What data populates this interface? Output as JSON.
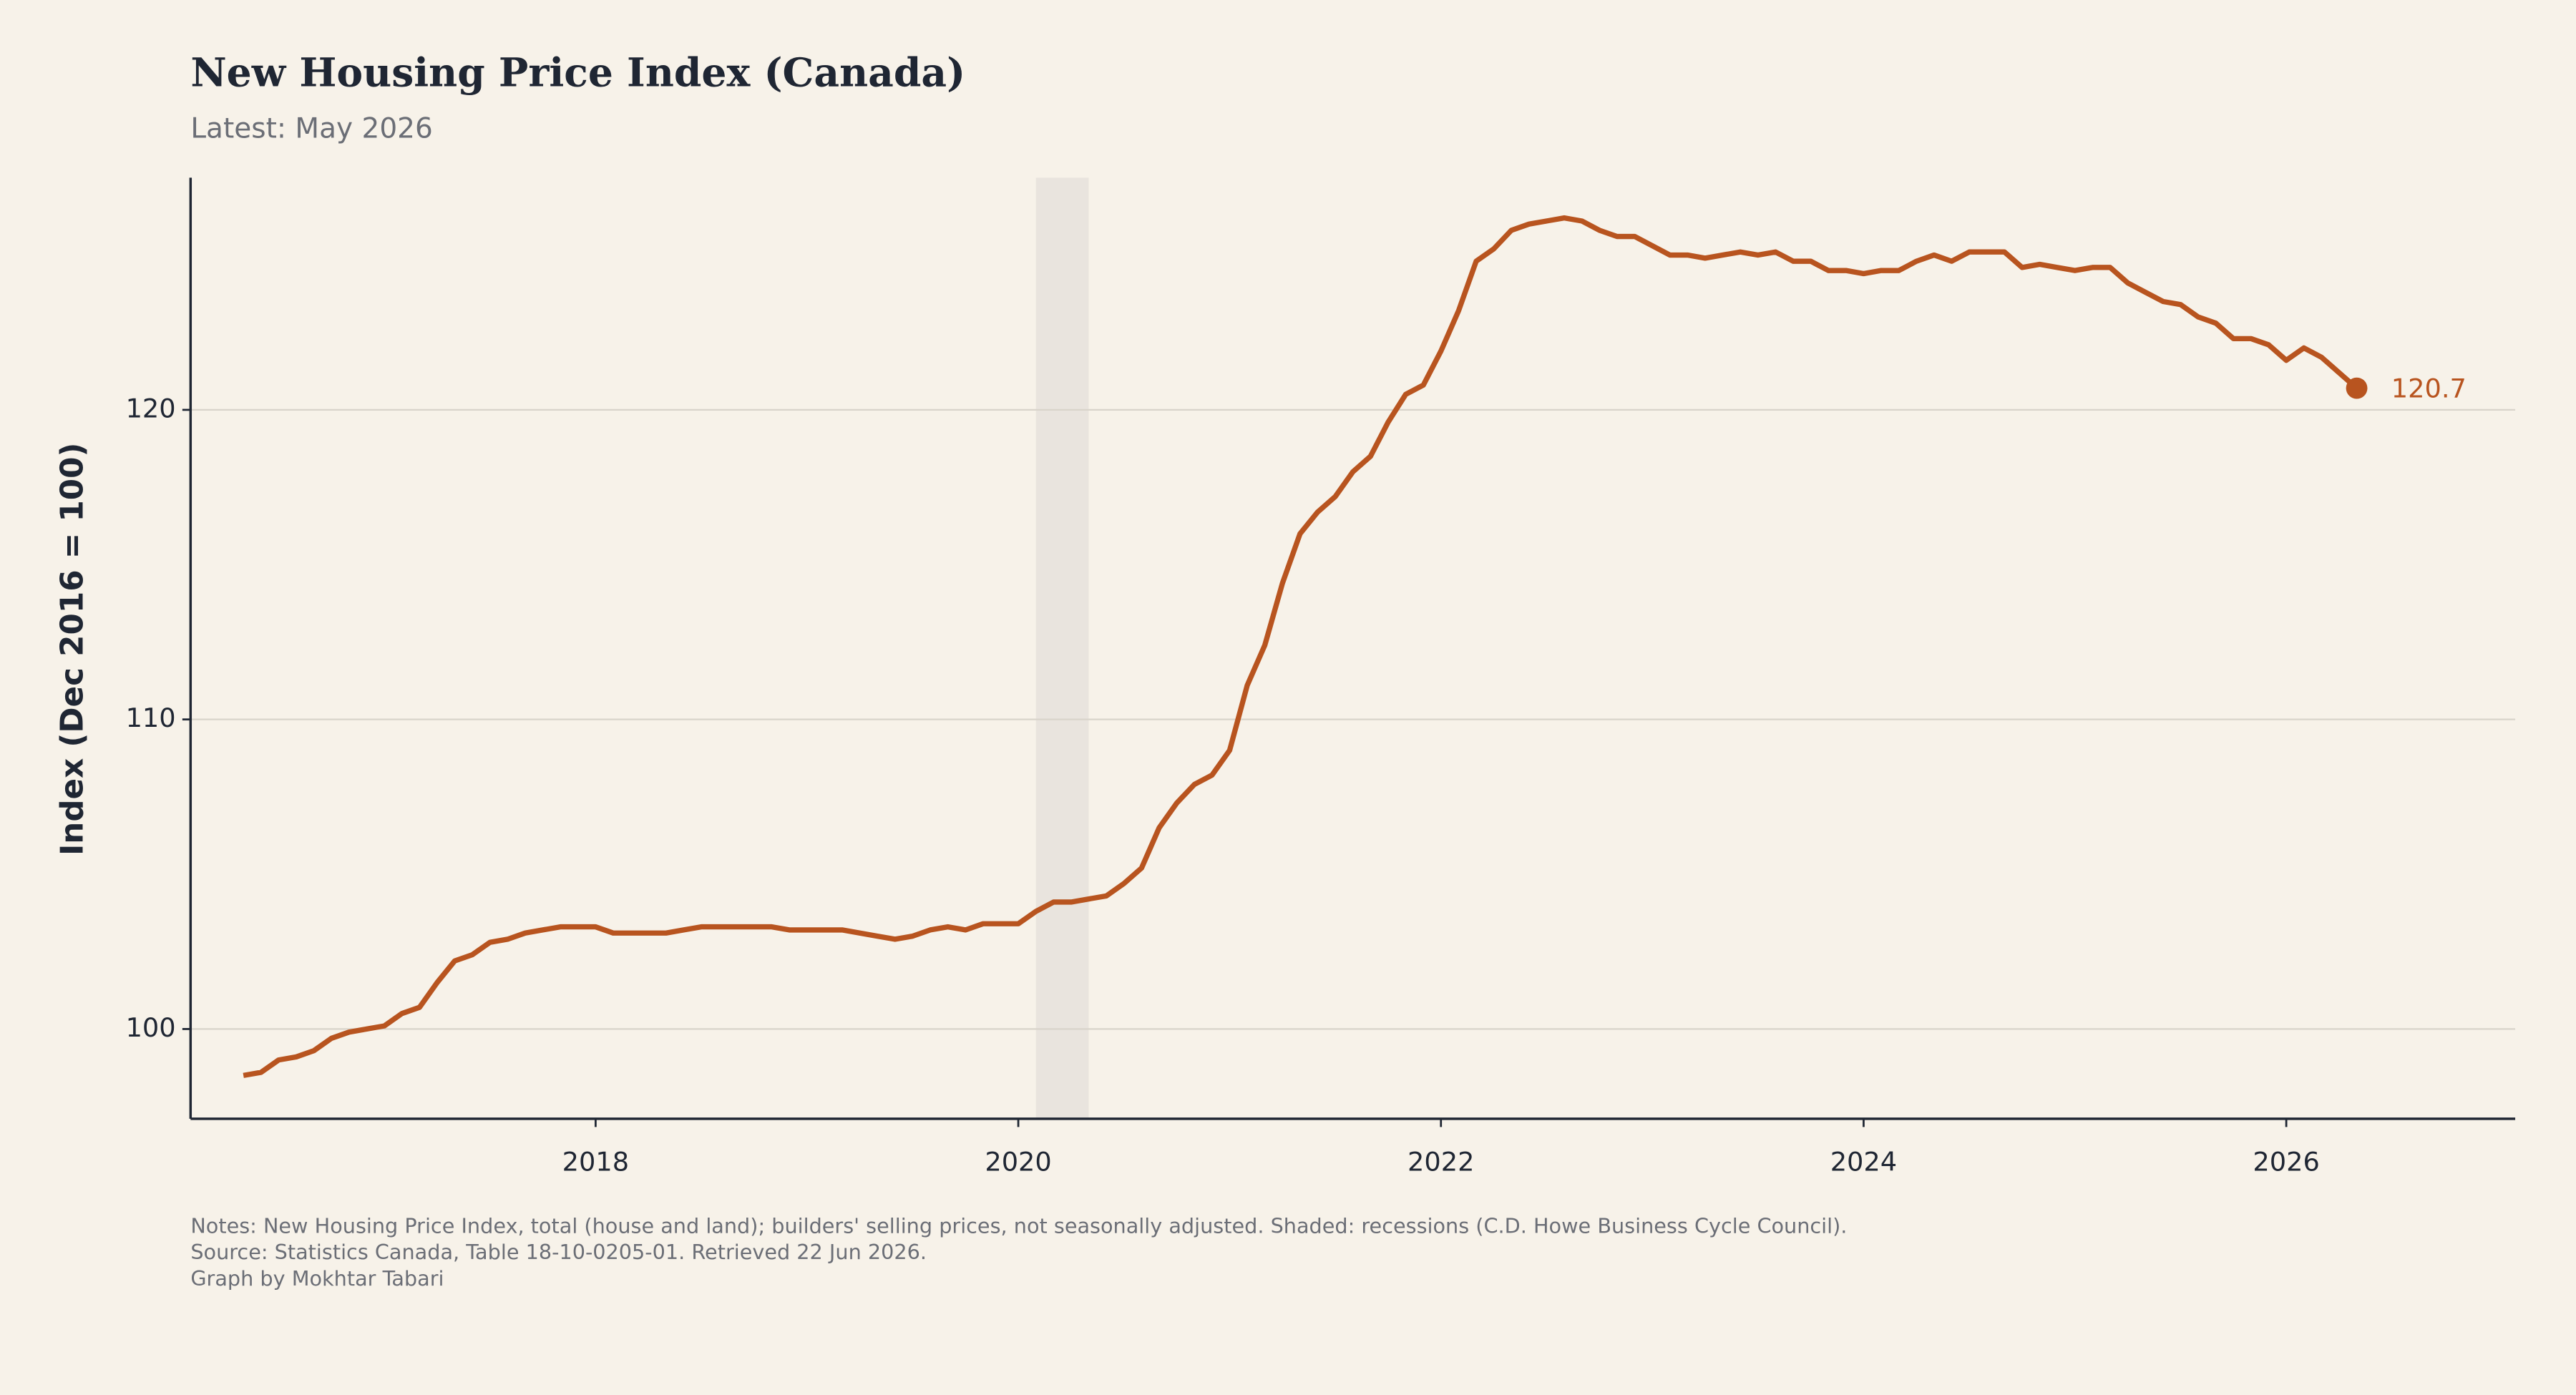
{
  "chart_data": {
    "type": "line",
    "title": "New Housing Price Index (Canada)",
    "subtitle": "Latest: May 2026",
    "y_label": "Index (Dec 2016 = 100)",
    "notes": [
      "Notes: New Housing Price Index, total (house and land); builders' selling prices, not seasonally adjusted. Shaded: recessions (C.D. Howe Business Cycle Council).",
      "Source: Statistics Canada, Table 18-10-0205-01. Retrieved 22 Jun 2026.",
      "Graph by Mokhtar Tabari"
    ],
    "x": [
      "2016-05",
      "2016-06",
      "2016-07",
      "2016-08",
      "2016-09",
      "2016-10",
      "2016-11",
      "2016-12",
      "2017-01",
      "2017-02",
      "2017-03",
      "2017-04",
      "2017-05",
      "2017-06",
      "2017-07",
      "2017-08",
      "2017-09",
      "2017-10",
      "2017-11",
      "2017-12",
      "2018-01",
      "2018-02",
      "2018-03",
      "2018-04",
      "2018-05",
      "2018-06",
      "2018-07",
      "2018-08",
      "2018-09",
      "2018-10",
      "2018-11",
      "2018-12",
      "2019-01",
      "2019-02",
      "2019-03",
      "2019-04",
      "2019-05",
      "2019-06",
      "2019-07",
      "2019-08",
      "2019-09",
      "2019-10",
      "2019-11",
      "2019-12",
      "2020-01",
      "2020-02",
      "2020-03",
      "2020-04",
      "2020-05",
      "2020-06",
      "2020-07",
      "2020-08",
      "2020-09",
      "2020-10",
      "2020-11",
      "2020-12",
      "2021-01",
      "2021-02",
      "2021-03",
      "2021-04",
      "2021-05",
      "2021-06",
      "2021-07",
      "2021-08",
      "2021-09",
      "2021-10",
      "2021-11",
      "2021-12",
      "2022-01",
      "2022-02",
      "2022-03",
      "2022-04",
      "2022-05",
      "2022-06",
      "2022-07",
      "2022-08",
      "2022-09",
      "2022-10",
      "2022-11",
      "2022-12",
      "2023-01",
      "2023-02",
      "2023-03",
      "2023-04",
      "2023-05",
      "2023-06",
      "2023-07",
      "2023-08",
      "2023-09",
      "2023-10",
      "2023-11",
      "2023-12",
      "2024-01",
      "2024-02",
      "2024-03",
      "2024-04",
      "2024-05",
      "2024-06",
      "2024-07",
      "2024-08",
      "2024-09",
      "2024-10",
      "2024-11",
      "2024-12",
      "2025-01",
      "2025-02",
      "2025-03",
      "2025-04",
      "2025-05",
      "2025-06",
      "2025-07",
      "2025-08",
      "2025-09",
      "2025-10",
      "2025-11",
      "2025-12",
      "2026-01",
      "2026-02",
      "2026-03",
      "2026-04",
      "2026-05"
    ],
    "series": [
      {
        "name": "New Housing Price Index",
        "color": "#b8541f",
        "values": [
          98.5,
          98.6,
          99.0,
          99.1,
          99.3,
          99.7,
          99.9,
          100.0,
          100.1,
          100.5,
          100.7,
          101.5,
          102.2,
          102.4,
          102.8,
          102.9,
          103.1,
          103.2,
          103.3,
          103.3,
          103.3,
          103.1,
          103.1,
          103.1,
          103.1,
          103.2,
          103.3,
          103.3,
          103.3,
          103.3,
          103.3,
          103.2,
          103.2,
          103.2,
          103.2,
          103.1,
          103.0,
          102.9,
          103.0,
          103.2,
          103.3,
          103.2,
          103.4,
          103.4,
          103.4,
          103.8,
          104.1,
          104.1,
          104.2,
          104.3,
          104.7,
          105.2,
          106.5,
          107.3,
          107.9,
          108.2,
          109.0,
          111.1,
          112.4,
          114.4,
          116.0,
          116.7,
          117.2,
          118.0,
          118.5,
          119.6,
          120.5,
          120.8,
          121.9,
          123.2,
          124.8,
          125.2,
          125.8,
          126.0,
          126.1,
          126.2,
          126.1,
          125.8,
          125.6,
          125.6,
          125.3,
          125.0,
          125.0,
          124.9,
          125.0,
          125.1,
          125.0,
          125.1,
          124.8,
          124.8,
          124.5,
          124.5,
          124.4,
          124.5,
          124.5,
          124.8,
          125.0,
          124.8,
          125.1,
          125.1,
          125.1,
          124.6,
          124.7,
          124.6,
          124.5,
          124.6,
          124.6,
          124.1,
          123.8,
          123.5,
          123.4,
          123.0,
          122.8,
          122.3,
          122.3,
          122.1,
          121.6,
          122.0,
          121.7,
          121.2,
          120.7
        ]
      }
    ],
    "xlim": [
      "2016-02",
      "2027-02"
    ],
    "xticks": [
      {
        "value": "2018-01",
        "label": "2018"
      },
      {
        "value": "2020-01",
        "label": "2020"
      },
      {
        "value": "2022-01",
        "label": "2022"
      },
      {
        "value": "2024-01",
        "label": "2024"
      },
      {
        "value": "2026-01",
        "label": "2026"
      }
    ],
    "ylim": [
      97.1,
      127.5
    ],
    "yticks": [
      100,
      110,
      120
    ],
    "grid": true,
    "recessions": [
      [
        "2020-02",
        "2020-05"
      ]
    ],
    "recession_color": "#e9e4de"
  }
}
